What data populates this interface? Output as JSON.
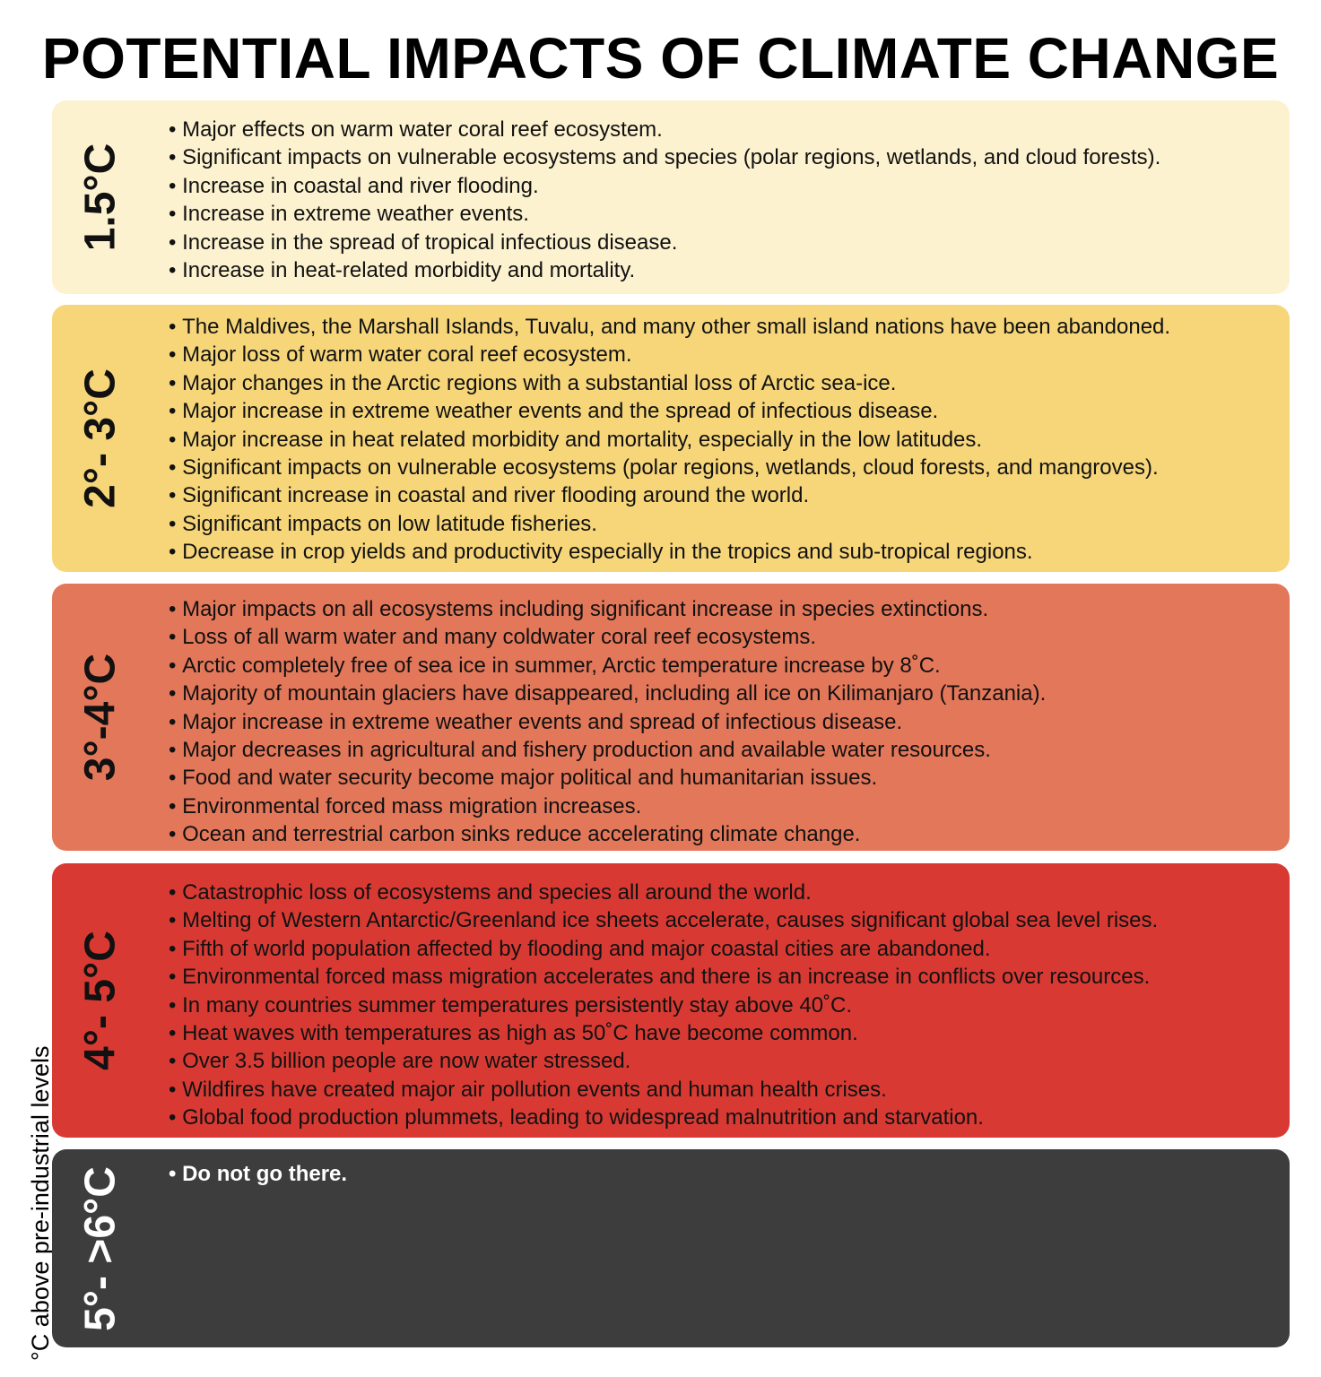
{
  "title": "POTENTIAL IMPACTS OF CLIMATE CHANGE",
  "y_axis_label": "°C above pre-industrial levels",
  "colors": {
    "band_1": "#fdf2cf",
    "band_2": "#f7d67a",
    "band_3": "#e3775a",
    "band_4": "#d83a33",
    "band_5": "#3d3d3d"
  },
  "bands": [
    {
      "label": "1.5°C",
      "impacts": [
        "Major effects on warm water coral reef ecosystem.",
        "Significant impacts on vulnerable ecosystems and species (polar regions, wetlands, and cloud forests).",
        "Increase in coastal and river flooding.",
        "Increase in extreme weather events.",
        "Increase in the spread of tropical infectious disease.",
        "Increase in heat-related morbidity and mortality."
      ]
    },
    {
      "label": "2°- 3°C",
      "impacts": [
        "The Maldives, the Marshall Islands, Tuvalu, and many other small island nations have been abandoned.",
        "Major loss of warm water coral reef ecosystem.",
        "Major changes in the Arctic regions with a substantial loss of Arctic sea-ice.",
        "Major increase in extreme weather events and the spread of infectious disease.",
        "Major increase in heat related morbidity and mortality, especially in the low latitudes.",
        "Significant impacts on vulnerable ecosystems (polar regions, wetlands, cloud forests, and mangroves).",
        "Significant increase in coastal and river flooding around the world.",
        "Significant impacts on low latitude fisheries.",
        "Decrease in crop yields and productivity especially in the tropics and sub-tropical regions."
      ]
    },
    {
      "label": "3°-4°C",
      "impacts": [
        "Major impacts on all ecosystems including significant increase in species extinctions.",
        "Loss of all warm water and many coldwater coral reef ecosystems.",
        "Arctic completely free of sea ice in summer, Arctic temperature increase by 8˚C.",
        "Majority of mountain glaciers have disappeared, including all ice on Kilimanjaro (Tanzania).",
        "Major increase in extreme weather events and spread of infectious disease.",
        "Major decreases in agricultural and fishery production and available water resources.",
        "Food and water security become major political and humanitarian issues.",
        "Environmental forced mass migration increases.",
        "Ocean and terrestrial carbon sinks reduce accelerating climate change."
      ]
    },
    {
      "label": "4°- 5°C",
      "impacts": [
        "Catastrophic loss of ecosystems and species all around the world.",
        "Melting of Western Antarctic/Greenland ice sheets accelerate, causes significant global sea level rises.",
        "Fifth of world population affected by flooding and major coastal cities are abandoned.",
        "Environmental forced mass migration accelerates and there is an increase in conflicts over resources.",
        "In many countries summer temperatures persistently stay above 40˚C.",
        "Heat waves with temperatures as high as 50˚C have become common.",
        "Over 3.5 billion people are now water stressed.",
        "Wildfires have created major air pollution events and human health crises.",
        "Global food production plummets, leading to widespread malnutrition and starvation."
      ]
    },
    {
      "label": "5°- >6°C",
      "impacts": [
        "Do not go there."
      ]
    }
  ]
}
